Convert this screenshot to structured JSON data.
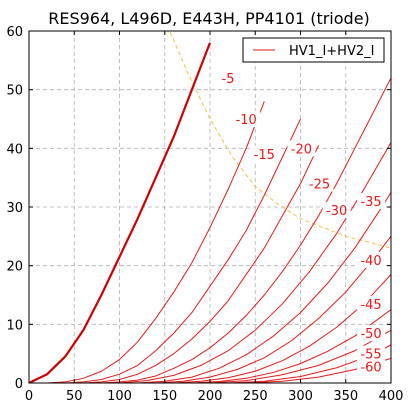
{
  "chart_data": {
    "type": "line",
    "title": "RES964, L496D, E443H, PP4101 (triode)",
    "xlabel": "",
    "ylabel": "",
    "xlim": [
      0,
      400
    ],
    "ylim": [
      0,
      60
    ],
    "xticks": [
      0,
      50,
      100,
      150,
      200,
      250,
      300,
      350,
      400
    ],
    "yticks": [
      0,
      10,
      20,
      30,
      40,
      50,
      60
    ],
    "grid": true,
    "legend": {
      "position": "top-right",
      "entries": [
        "HV1_I+HV2_I"
      ]
    },
    "colors": {
      "curve": "#e31a1c",
      "bold_curve": "#cc0000",
      "power_limit": "#f2c14e",
      "grid": "#b0b0b0"
    },
    "power_limit_curve": {
      "style": "dashed",
      "x": [
        150,
        175,
        200,
        225,
        250,
        275,
        300,
        325,
        350,
        375,
        400
      ],
      "y": [
        62,
        53,
        45,
        38.5,
        33.5,
        30.5,
        28,
        26.5,
        25,
        24,
        23
      ]
    },
    "series": [
      {
        "label": "",
        "bold": true,
        "x": [
          0,
          20,
          40,
          60,
          80,
          100,
          120,
          140,
          160,
          180,
          200
        ],
        "y": [
          0,
          1.5,
          4.5,
          9,
          15,
          21.5,
          28,
          35,
          42,
          50,
          58
        ]
      },
      {
        "label": "-5",
        "x": [
          20,
          40,
          60,
          80,
          100,
          120,
          140,
          160,
          180,
          200,
          220,
          240,
          260
        ],
        "y": [
          0,
          0.2,
          0.8,
          2,
          4,
          7,
          11,
          15.5,
          20.5,
          26.5,
          33,
          40,
          48
        ]
      },
      {
        "label": "-10",
        "x": [
          40,
          60,
          80,
          100,
          120,
          140,
          160,
          180,
          200,
          220,
          240,
          260,
          280,
          300
        ],
        "y": [
          0,
          0.2,
          0.6,
          1.5,
          3,
          5.5,
          8.5,
          12,
          16.5,
          21,
          26,
          32,
          38.5,
          45
        ]
      },
      {
        "label": "-15",
        "x": [
          60,
          80,
          100,
          120,
          140,
          160,
          180,
          200,
          220,
          240,
          260,
          280,
          300,
          320
        ],
        "y": [
          0,
          0.2,
          0.6,
          1.5,
          3,
          5,
          7.5,
          10.5,
          14,
          18.5,
          23,
          28.5,
          34,
          40.5
        ]
      },
      {
        "label": "-20",
        "x": [
          80,
          100,
          120,
          140,
          160,
          180,
          200,
          220,
          240,
          260,
          280,
          300,
          320,
          340,
          360,
          380,
          400
        ],
        "y": [
          0,
          0.2,
          0.5,
          1.2,
          2.5,
          4,
          6,
          8.5,
          11.5,
          15,
          19,
          23.5,
          28.5,
          34,
          40,
          46,
          52
        ]
      },
      {
        "label": "-25",
        "x": [
          100,
          130,
          160,
          190,
          220,
          250,
          280,
          310,
          340,
          370,
          400
        ],
        "y": [
          0,
          0.4,
          1.3,
          3,
          5.5,
          9,
          13.5,
          19,
          25.5,
          33,
          41
        ]
      },
      {
        "label": "-30",
        "x": [
          120,
          150,
          180,
          210,
          240,
          270,
          300,
          330,
          360,
          390,
          400
        ],
        "y": [
          0,
          0.3,
          1,
          2.5,
          4.8,
          8,
          12,
          17,
          23,
          30,
          32.5
        ]
      },
      {
        "label": "-35",
        "x": [
          140,
          170,
          200,
          230,
          260,
          290,
          320,
          350,
          380,
          400
        ],
        "y": [
          0,
          0.3,
          1,
          2.3,
          4.3,
          7.2,
          11,
          15.5,
          21,
          25
        ]
      },
      {
        "label": "-40",
        "x": [
          160,
          190,
          220,
          250,
          280,
          310,
          340,
          370,
          400
        ],
        "y": [
          0,
          0.3,
          0.9,
          2,
          3.8,
          6.3,
          9.5,
          13.5,
          18.5
        ]
      },
      {
        "label": "-45",
        "x": [
          180,
          210,
          240,
          270,
          300,
          330,
          360,
          400
        ],
        "y": [
          0,
          0.25,
          0.8,
          1.8,
          3.3,
          5.4,
          8,
          12.5
        ]
      },
      {
        "label": "-50",
        "x": [
          200,
          240,
          280,
          320,
          360,
          400
        ],
        "y": [
          0,
          0.4,
          1.4,
          3,
          5.5,
          9
        ]
      },
      {
        "label": "-55",
        "x": [
          220,
          260,
          300,
          340,
          380,
          400
        ],
        "y": [
          0,
          0.3,
          1.1,
          2.6,
          4.8,
          6.5
        ]
      },
      {
        "label": "-60",
        "x": [
          240,
          280,
          320,
          360,
          400
        ],
        "y": [
          0,
          0.3,
          1,
          2.3,
          4.2
        ]
      }
    ],
    "curve_labels": [
      {
        "text": "-5",
        "x": 220,
        "y": 52
      },
      {
        "text": "-10",
        "x": 240,
        "y": 45
      },
      {
        "text": "-15",
        "x": 260,
        "y": 39
      },
      {
        "text": "-20",
        "x": 301,
        "y": 40
      },
      {
        "text": "-25",
        "x": 321,
        "y": 34
      },
      {
        "text": "-30",
        "x": 340,
        "y": 29.5
      },
      {
        "text": "-35",
        "x": 378,
        "y": 31
      },
      {
        "text": "-40",
        "x": 378,
        "y": 21
      },
      {
        "text": "-45",
        "x": 378,
        "y": 13.5
      },
      {
        "text": "-50",
        "x": 378,
        "y": 8.5
      },
      {
        "text": "-55",
        "x": 378,
        "y": 5
      },
      {
        "text": "-60",
        "x": 378,
        "y": 2.8
      }
    ]
  }
}
